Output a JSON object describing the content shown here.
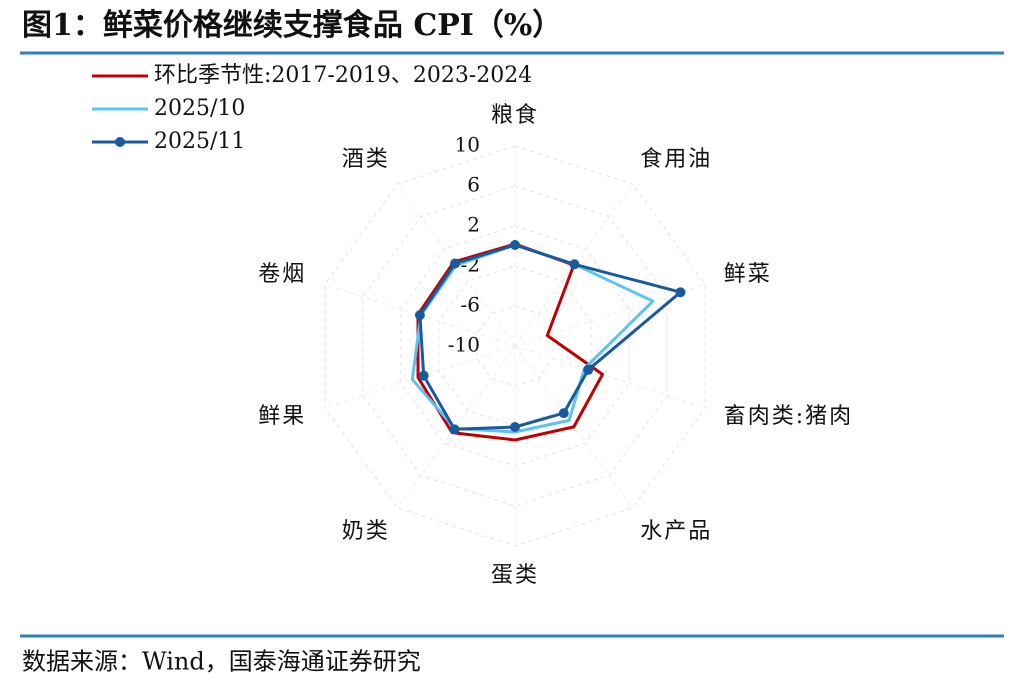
{
  "chart_data": {
    "type": "radar",
    "title": "图1：鲜菜价格继续支撑食品 CPI（%）",
    "source": "数据来源：Wind，国泰海通证券研究",
    "categories": [
      "粮食",
      "食用油",
      "鲜菜",
      "畜肉类:猪肉",
      "水产品",
      "蛋类",
      "奶类",
      "鲜果",
      "卷烟",
      "酒类"
    ],
    "ylim": [
      -10,
      10
    ],
    "yticks": [
      -10,
      -6,
      -2,
      2,
      6,
      10
    ],
    "grid": true,
    "legend": "top-left",
    "series": [
      {
        "name": "环比季节性:2017-2019、2023-2024",
        "color": "#c00000",
        "marker": false,
        "values": [
          0.2,
          0,
          -6.6,
          -0.8,
          0,
          -0.6,
          0.7,
          0.2,
          0.2,
          0.4
        ]
      },
      {
        "name": "2025/10",
        "color": "#5bc3ec",
        "marker": false,
        "values": [
          0.1,
          0.1,
          4.5,
          -2.7,
          -0.8,
          -1.4,
          0.2,
          0.8,
          -0.1,
          0
        ]
      },
      {
        "name": "2025/11",
        "color": "#1a5a9c",
        "marker": true,
        "values": [
          0.1,
          0.1,
          7.4,
          -2.3,
          -1.7,
          -1.9,
          0.3,
          -0.4,
          0,
          0.2
        ]
      }
    ]
  }
}
